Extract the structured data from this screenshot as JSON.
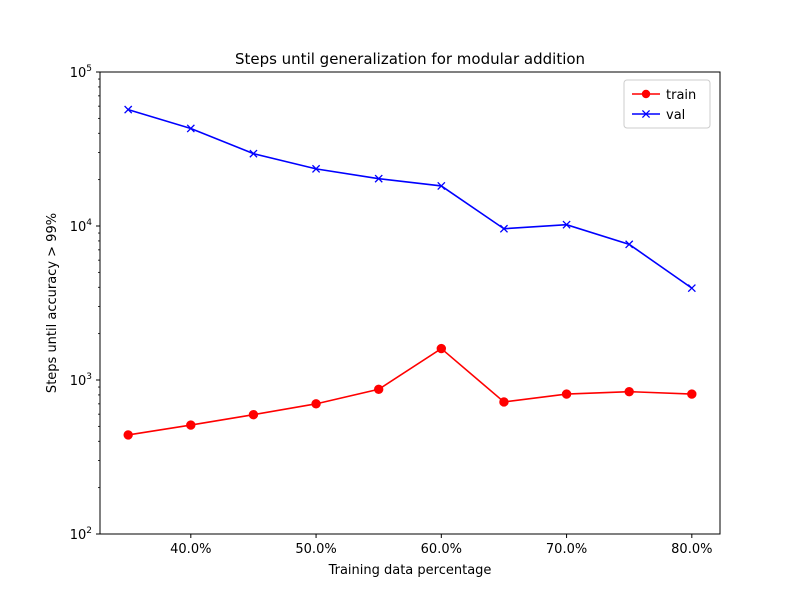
{
  "chart_data": {
    "type": "line",
    "title": "Steps until generalization for modular addition",
    "xlabel": "Training data percentage",
    "ylabel": "Steps until accuracy > 99%",
    "y_scale": "log",
    "ylim": [
      100,
      100000
    ],
    "xlim": [
      0.3275,
      0.8225
    ],
    "grid": false,
    "legend_position": "top-right",
    "x": [
      0.35,
      0.4,
      0.45,
      0.5,
      0.55,
      0.6,
      0.65,
      0.7,
      0.75,
      0.8
    ],
    "x_tick_values": [
      0.4,
      0.5,
      0.6,
      0.7,
      0.8
    ],
    "x_tick_labels": [
      "40.0%",
      "50.0%",
      "60.0%",
      "70.0%",
      "80.0%"
    ],
    "y_tick_values": [
      100,
      1000,
      10000,
      100000
    ],
    "y_tick_base": "10",
    "y_tick_exponents": [
      "2",
      "3",
      "4",
      "5"
    ],
    "series": [
      {
        "name": "train",
        "color": "#ff0000",
        "marker": "circle",
        "values": [
          440,
          510,
          595,
          700,
          870,
          1600,
          720,
          810,
          840,
          810
        ]
      },
      {
        "name": "val",
        "color": "#0000ff",
        "marker": "x",
        "values": [
          57000,
          43000,
          29500,
          23500,
          20300,
          18200,
          9600,
          10200,
          7600,
          3950
        ]
      }
    ]
  }
}
